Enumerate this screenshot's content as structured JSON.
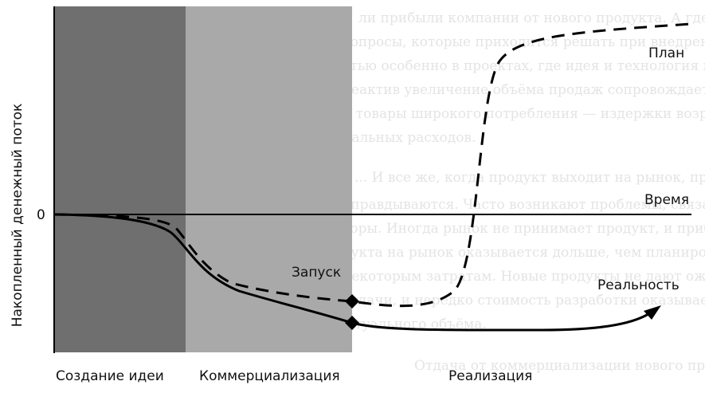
{
  "labels": {
    "y_axis": "Накопленный денежный поток",
    "zero": "0",
    "time": "Время",
    "plan": "План",
    "reality": "Реальность",
    "launch": "Запуск",
    "phase_idea": "Создание идеи",
    "phase_commercialization": "Коммерциализация",
    "phase_realization": "Реализация"
  },
  "colors": {
    "phase_idea_fill": "#6f6f6f",
    "phase_commercialization_fill": "#a9a9a9",
    "background_text": "#e4e4e4",
    "lines": "#000000"
  },
  "background_text_lines": [
    "ли прибыли компании от нового продукта. А где же прибыль?",
    "вопросы, которые приходится решать при внедрении новых",
    "стью особенно в проектах, где идея и технология новые. Ко-",
    "реактив увеличение объёма продаж сопровождается ростом",
    "и товары широкого потребления — издержки возрастают.",
    "нальных расходов.",
    "... И все же, когда продукт выходит на рынок, прогнозы не",
    "оправдываются. Часто возникают проблемы, связанные с",
    "торы. Иногда рынок не принимает продукт, и прибыль дохо-",
    "дукта на рынок оказывается дольше, чем планировалось.",
    "некоторым затратам. Новые продукты не дают ожидаемой",
    "отдачи, и нередко стоимость разработки оказывается выше",
    "туального объёма.",
    "Отдача от коммерциализации нового продукта."
  ]
}
